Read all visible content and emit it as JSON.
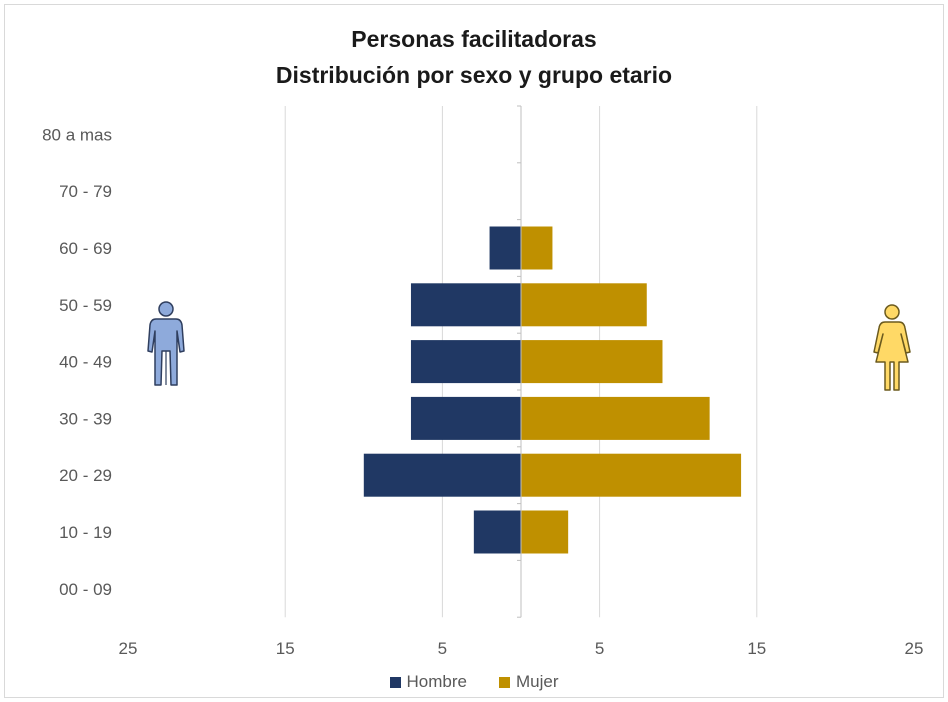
{
  "chart_data": {
    "type": "bar",
    "orientation": "horizontal",
    "style": "population-pyramid",
    "title": "Personas facilitadoras",
    "subtitle": "Distribución por sexo y grupo etario",
    "categories": [
      "00 - 09",
      "10 - 19",
      "20 - 29",
      "30 - 39",
      "40 - 49",
      "50 - 59",
      "60 - 69",
      "70 - 79",
      "80 a mas"
    ],
    "series": [
      {
        "name": "Hombre",
        "color": "#203864",
        "side": "left",
        "values": [
          0,
          3,
          10,
          7,
          7,
          7,
          2,
          0,
          0
        ]
      },
      {
        "name": "Mujer",
        "color": "#bf9000",
        "side": "right",
        "values": [
          0,
          3,
          14,
          12,
          9,
          8,
          2,
          0,
          0
        ]
      }
    ],
    "xlim": [
      -25,
      25
    ],
    "x_ticks": [
      -25,
      -15,
      -5,
      5,
      15,
      25
    ],
    "x_tick_labels": [
      "25",
      "15",
      "5",
      "5",
      "15",
      "25"
    ],
    "grid": true,
    "legend_position": "bottom",
    "icons": {
      "left": "man-icon",
      "right": "woman-icon",
      "left_color": "#8eaadb",
      "right_color": "#ffd966"
    }
  }
}
